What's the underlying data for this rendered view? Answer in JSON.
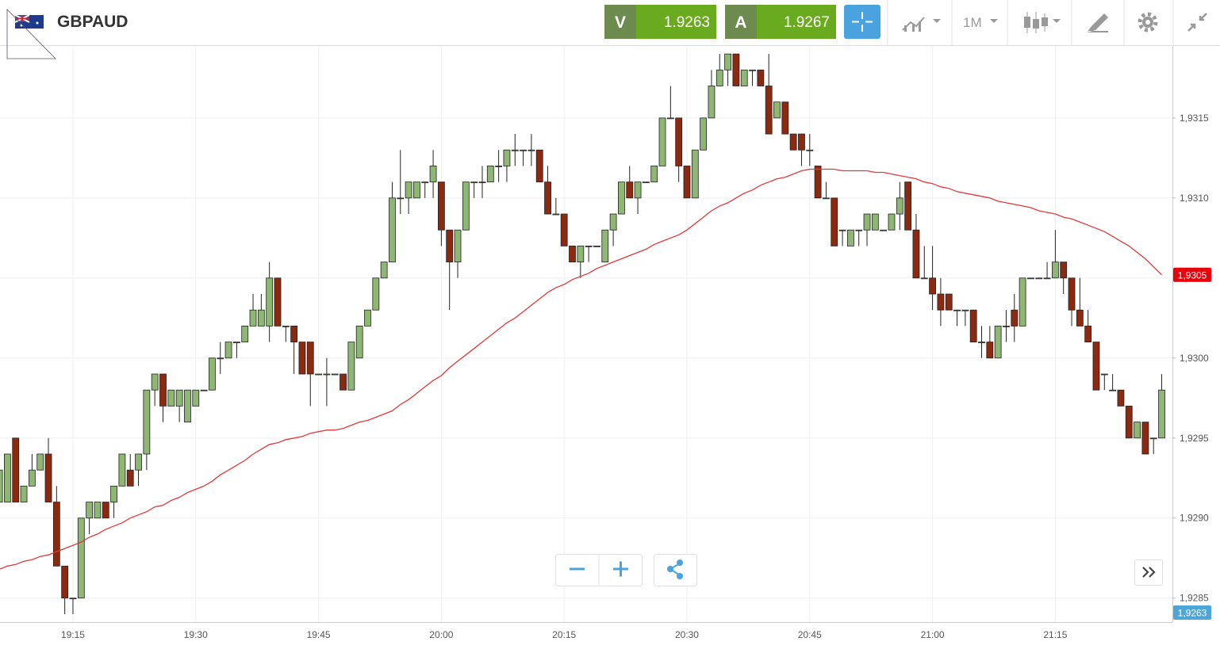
{
  "toolbar": {
    "symbol": "GBPAUD",
    "sell_label": "V",
    "sell_price": "1.9263",
    "buy_label": "A",
    "buy_price": "1.9267",
    "timeframe": "1M"
  },
  "chart_data": {
    "type": "candlestick",
    "categories": [
      null,
      null,
      null,
      null,
      null,
      null,
      null,
      null,
      null,
      "19:15",
      null,
      null,
      null,
      null,
      null,
      null,
      null,
      null,
      null,
      null,
      null,
      null,
      null,
      null,
      "19:30",
      null,
      null,
      null,
      null,
      null,
      null,
      null,
      null,
      null,
      null,
      null,
      null,
      null,
      null,
      "19:45",
      null,
      null,
      null,
      null,
      null,
      null,
      null,
      null,
      null,
      null,
      null,
      null,
      null,
      null,
      "20:00",
      null,
      null,
      null,
      null,
      null,
      null,
      null,
      null,
      null,
      null,
      null,
      null,
      null,
      null,
      "20:15",
      null,
      null,
      null,
      null,
      null,
      null,
      null,
      null,
      null,
      null,
      null,
      null,
      null,
      null,
      "20:30",
      null,
      null,
      null,
      null,
      null,
      null,
      null,
      null,
      null,
      null,
      null,
      null,
      null,
      null,
      "20:45",
      null,
      null,
      null,
      null,
      null,
      null,
      null,
      null,
      null,
      null,
      null,
      null,
      null,
      null,
      "21:00",
      null,
      null,
      null,
      null,
      null,
      null,
      null,
      null,
      null,
      null,
      null,
      null,
      null,
      null,
      "21:15",
      null,
      null,
      null,
      null,
      null,
      null,
      null,
      null,
      null,
      null,
      null,
      null,
      null
    ],
    "open": [
      1.9291,
      1.9291,
      1.9295,
      1.9291,
      1.9292,
      1.9293,
      1.9294,
      1.9291,
      1.9287,
      1.9285,
      1.9285,
      1.929,
      1.929,
      1.9291,
      1.9291,
      1.9292,
      1.9293,
      1.9293,
      1.9294,
      1.9298,
      1.9299,
      1.9297,
      1.9297,
      1.9296,
      1.9297,
      1.9298,
      1.9298,
      1.93,
      1.93,
      1.9301,
      1.9301,
      1.9302,
      1.9302,
      1.9302,
      1.9305,
      1.9302,
      1.9302,
      1.9301,
      1.9301,
      1.9299,
      1.9299,
      1.9299,
      1.9299,
      1.9298,
      1.93,
      1.9302,
      1.9303,
      1.9305,
      1.9306,
      1.931,
      1.931,
      1.931,
      1.9311,
      1.9311,
      1.9311,
      1.9308,
      1.9306,
      1.9308,
      1.9311,
      1.9311,
      1.9311,
      1.9312,
      1.9312,
      1.9313,
      1.9313,
      1.9313,
      1.9313,
      1.9311,
      1.9309,
      1.9309,
      1.9307,
      1.9306,
      1.9307,
      1.9307,
      1.9306,
      1.9308,
      1.9309,
      1.9311,
      1.931,
      1.9311,
      1.9311,
      1.9312,
      1.9315,
      1.9315,
      1.9312,
      1.931,
      1.9313,
      1.9315,
      1.9317,
      1.9318,
      1.9319,
      1.9317,
      1.9318,
      1.9318,
      1.9317,
      1.9315,
      1.9316,
      1.9314,
      1.9314,
      1.9313,
      1.9312,
      1.931,
      1.931,
      1.9308,
      1.9307,
      1.9308,
      1.9308,
      1.9308,
      1.9308,
      1.9308,
      1.9309,
      1.9311,
      1.9308,
      1.9305,
      1.9305,
      1.9304,
      1.9304,
      1.9303,
      1.9303,
      1.9303,
      1.9301,
      1.9301,
      1.93,
      1.9302,
      1.9303,
      1.9302,
      1.9305,
      1.9305,
      1.9305,
      1.9305,
      1.9306,
      1.9305,
      1.9303,
      1.9302,
      1.9301,
      1.9299,
      1.9298,
      1.9298,
      1.9297,
      1.9295,
      1.9296,
      1.9295,
      1.9295
    ],
    "high": [
      1.9294,
      1.9294,
      1.9295,
      1.9292,
      1.9294,
      1.9294,
      1.9295,
      1.9292,
      1.9287,
      1.9285,
      1.929,
      1.9291,
      1.9291,
      1.9291,
      1.9292,
      1.9294,
      1.9294,
      1.9294,
      1.9298,
      1.9299,
      1.9299,
      1.9298,
      1.9298,
      1.9298,
      1.9298,
      1.9298,
      1.93,
      1.9301,
      1.9301,
      1.9301,
      1.9302,
      1.9304,
      1.9304,
      1.9306,
      1.9305,
      1.9302,
      1.9302,
      1.9301,
      1.9301,
      1.9299,
      1.93,
      1.9299,
      1.9299,
      1.9301,
      1.9302,
      1.9303,
      1.9305,
      1.9306,
      1.9311,
      1.9313,
      1.9311,
      1.9311,
      1.9311,
      1.9313,
      1.9311,
      1.9308,
      1.9308,
      1.9311,
      1.9311,
      1.9312,
      1.9312,
      1.9313,
      1.9313,
      1.9314,
      1.9313,
      1.9314,
      1.9313,
      1.9312,
      1.931,
      1.9309,
      1.9307,
      1.9307,
      1.9307,
      1.9307,
      1.9308,
      1.9309,
      1.9311,
      1.9312,
      1.9311,
      1.9311,
      1.9312,
      1.9315,
      1.9317,
      1.9315,
      1.9312,
      1.9313,
      1.9315,
      1.9318,
      1.9319,
      1.9319,
      1.9319,
      1.9318,
      1.9318,
      1.9318,
      1.9319,
      1.9316,
      1.9316,
      1.9314,
      1.9314,
      1.9314,
      1.9312,
      1.9311,
      1.931,
      1.9308,
      1.9308,
      1.9308,
      1.9309,
      1.9309,
      1.9308,
      1.9309,
      1.9311,
      1.9311,
      1.9309,
      1.9307,
      1.9307,
      1.9305,
      1.9304,
      1.9303,
      1.9303,
      1.9303,
      1.9302,
      1.9302,
      1.9302,
      1.9303,
      1.9304,
      1.9305,
      1.9305,
      1.9305,
      1.9306,
      1.9308,
      1.9306,
      1.9305,
      1.9305,
      1.9303,
      1.9301,
      1.9299,
      1.9299,
      1.9298,
      1.9297,
      1.9296,
      1.9296,
      1.9295,
      1.9299
    ],
    "low": [
      1.9291,
      1.9291,
      1.9291,
      1.9291,
      1.9292,
      1.9293,
      1.9291,
      1.9287,
      1.9284,
      1.9284,
      1.9285,
      1.9289,
      1.929,
      1.929,
      1.929,
      1.9292,
      1.9292,
      1.9292,
      1.9293,
      1.9297,
      1.9296,
      1.9297,
      1.9296,
      1.9296,
      1.9297,
      1.9298,
      1.9298,
      1.9299,
      1.93,
      1.93,
      1.9301,
      1.9302,
      1.9302,
      1.9301,
      1.9302,
      1.9301,
      1.9299,
      1.9299,
      1.9297,
      1.9299,
      1.9297,
      1.9299,
      1.9298,
      1.9298,
      1.93,
      1.9302,
      1.9303,
      1.9305,
      1.9306,
      1.9309,
      1.9309,
      1.931,
      1.931,
      1.931,
      1.9307,
      1.9303,
      1.9305,
      1.9308,
      1.931,
      1.931,
      1.9311,
      1.9311,
      1.9311,
      1.9312,
      1.9312,
      1.9312,
      1.9311,
      1.9309,
      1.9309,
      1.9307,
      1.9306,
      1.9305,
      1.9306,
      1.9307,
      1.9306,
      1.9307,
      1.9309,
      1.931,
      1.9309,
      1.9311,
      1.9311,
      1.9312,
      1.9315,
      1.9311,
      1.931,
      1.931,
      1.9313,
      1.9315,
      1.9317,
      1.9317,
      1.9317,
      1.9317,
      1.9317,
      1.9317,
      1.9314,
      1.9315,
      1.9314,
      1.9313,
      1.9312,
      1.9312,
      1.931,
      1.931,
      1.9307,
      1.9307,
      1.9307,
      1.9307,
      1.9307,
      1.9308,
      1.9308,
      1.9308,
      1.9308,
      1.9308,
      1.9305,
      1.9305,
      1.9303,
      1.9302,
      1.9303,
      1.9302,
      1.9302,
      1.9301,
      1.93,
      1.93,
      1.93,
      1.9301,
      1.9301,
      1.9302,
      1.9305,
      1.9305,
      1.9305,
      1.9305,
      1.9304,
      1.9302,
      1.9302,
      1.9301,
      1.9298,
      1.9298,
      1.9298,
      1.9297,
      1.9295,
      1.9295,
      1.9294,
      1.9294,
      1.9295
    ],
    "close": [
      1.9293,
      1.9294,
      1.9291,
      1.9292,
      1.9293,
      1.9294,
      1.9291,
      1.9287,
      1.9285,
      1.9285,
      1.929,
      1.9291,
      1.9291,
      1.929,
      1.9292,
      1.9294,
      1.9292,
      1.9294,
      1.9298,
      1.9299,
      1.9297,
      1.9298,
      1.9298,
      1.9298,
      1.9298,
      1.9298,
      1.93,
      1.93,
      1.9301,
      1.9301,
      1.9302,
      1.9303,
      1.9303,
      1.9305,
      1.9302,
      1.9302,
      1.9301,
      1.9299,
      1.9299,
      1.9299,
      1.9299,
      1.9299,
      1.9298,
      1.9301,
      1.9302,
      1.9303,
      1.9305,
      1.9306,
      1.931,
      1.931,
      1.9311,
      1.9311,
      1.9311,
      1.9312,
      1.9308,
      1.9306,
      1.9308,
      1.9311,
      1.9311,
      1.9311,
      1.9312,
      1.9312,
      1.9313,
      1.9313,
      1.9313,
      1.9313,
      1.9311,
      1.9309,
      1.9309,
      1.9307,
      1.9306,
      1.9307,
      1.9307,
      1.9307,
      1.9308,
      1.9309,
      1.9311,
      1.931,
      1.9311,
      1.9311,
      1.9312,
      1.9315,
      1.9315,
      1.9312,
      1.931,
      1.9313,
      1.9315,
      1.9317,
      1.9318,
      1.9319,
      1.9317,
      1.9318,
      1.9318,
      1.9317,
      1.9314,
      1.9316,
      1.9314,
      1.9313,
      1.9313,
      1.9313,
      1.931,
      1.931,
      1.9307,
      1.9308,
      1.9308,
      1.9308,
      1.9309,
      1.9309,
      1.9308,
      1.9309,
      1.931,
      1.9308,
      1.9305,
      1.9305,
      1.9304,
      1.9303,
      1.9303,
      1.9303,
      1.9303,
      1.9301,
      1.9301,
      1.93,
      1.9302,
      1.9302,
      1.9302,
      1.9305,
      1.9305,
      1.9305,
      1.9305,
      1.9306,
      1.9305,
      1.9303,
      1.9302,
      1.9301,
      1.9298,
      1.9299,
      1.9298,
      1.9297,
      1.9295,
      1.9296,
      1.9294,
      1.9295,
      1.9298
    ],
    "moving_average": {
      "color": "#e03a3a",
      "values": [
        1.92868,
        1.9287,
        1.92871,
        1.92873,
        1.92874,
        1.92876,
        1.92877,
        1.92879,
        1.92881,
        1.92883,
        1.92885,
        1.92888,
        1.9289,
        1.92893,
        1.92895,
        1.92897,
        1.929,
        1.92902,
        1.92904,
        1.92907,
        1.92908,
        1.92911,
        1.92913,
        1.92916,
        1.92918,
        1.9292,
        1.92923,
        1.92927,
        1.9293,
        1.92933,
        1.92936,
        1.9294,
        1.92943,
        1.92946,
        1.92947,
        1.92949,
        1.9295,
        1.92951,
        1.92953,
        1.92954,
        1.92955,
        1.92955,
        1.92956,
        1.92958,
        1.9296,
        1.92961,
        1.92963,
        1.92965,
        1.92967,
        1.92971,
        1.92974,
        1.92978,
        1.92982,
        1.92986,
        1.92989,
        1.92994,
        1.92998,
        1.93002,
        1.93006,
        1.9301,
        1.93014,
        1.93018,
        1.93022,
        1.93025,
        1.93029,
        1.93033,
        1.93037,
        1.93041,
        1.93044,
        1.93046,
        1.93049,
        1.93051,
        1.93053,
        1.93056,
        1.93058,
        1.9306,
        1.93062,
        1.93064,
        1.93066,
        1.93068,
        1.93071,
        1.93073,
        1.93075,
        1.93077,
        1.9308,
        1.93084,
        1.93088,
        1.93092,
        1.93095,
        1.93097,
        1.931,
        1.93103,
        1.93105,
        1.93108,
        1.9311,
        1.93112,
        1.93113,
        1.93115,
        1.93117,
        1.93118,
        1.93118,
        1.93118,
        1.93118,
        1.93117,
        1.93117,
        1.93117,
        1.93117,
        1.93116,
        1.93116,
        1.93115,
        1.93114,
        1.93113,
        1.93112,
        1.9311,
        1.93109,
        1.93107,
        1.93106,
        1.93104,
        1.93103,
        1.93102,
        1.93101,
        1.931,
        1.93098,
        1.93097,
        1.93096,
        1.93095,
        1.93094,
        1.93092,
        1.93091,
        1.9309,
        1.93088,
        1.93087,
        1.93085,
        1.93083,
        1.93081,
        1.93079,
        1.93076,
        1.93073,
        1.9307,
        1.93066,
        1.93062,
        1.93057,
        1.93052
      ]
    },
    "up_color": "#8db773",
    "down_color": "#8b2a10",
    "ylim": [
      1.92835,
      1.93195
    ],
    "yticks": [
      {
        "value": 1.9285,
        "label": "1,9285"
      },
      {
        "value": 1.929,
        "label": "1,9290"
      },
      {
        "value": 1.9295,
        "label": "1,9295"
      },
      {
        "value": 1.93,
        "label": "1,9300"
      },
      {
        "value": 1.9305,
        "label": "1,9305"
      },
      {
        "value": 1.931,
        "label": "1,9310"
      },
      {
        "value": 1.9315,
        "label": "1,9315"
      }
    ],
    "grid": true,
    "price_tags": [
      {
        "label": "1,9305",
        "color": "#e8000b"
      },
      {
        "label": "1,9263",
        "color": "#4ea6d8"
      }
    ]
  }
}
